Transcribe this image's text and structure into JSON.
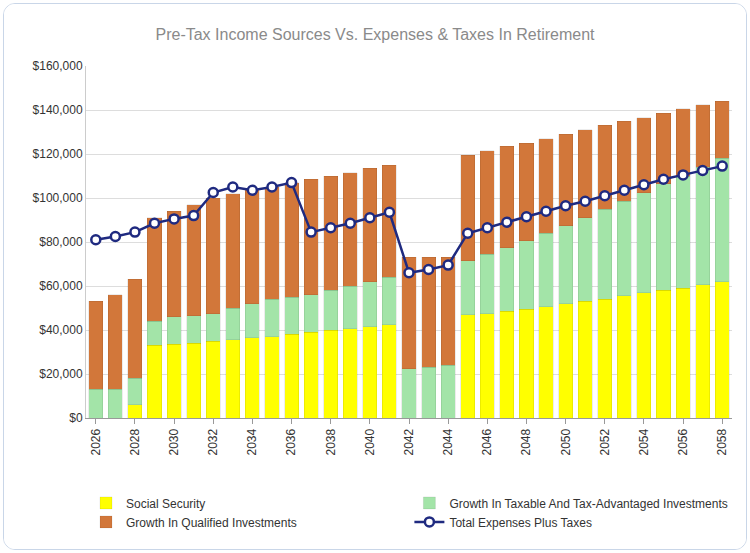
{
  "chart_data": {
    "type": "bar",
    "title": "Pre-Tax Income Sources Vs. Expenses & Taxes In Retirement",
    "stacked": true,
    "grid": true,
    "legend": "bottom",
    "x": [
      2026,
      2027,
      2028,
      2029,
      2030,
      2031,
      2032,
      2033,
      2034,
      2035,
      2036,
      2037,
      2038,
      2039,
      2040,
      2041,
      2042,
      2043,
      2044,
      2045,
      2046,
      2047,
      2048,
      2049,
      2050,
      2051,
      2052,
      2053,
      2054,
      2055,
      2056,
      2057,
      2058
    ],
    "xlim": [
      2025.5,
      2058.5
    ],
    "xticks": [
      2026,
      2028,
      2030,
      2032,
      2034,
      2036,
      2038,
      2040,
      2042,
      2044,
      2046,
      2048,
      2050,
      2052,
      2054,
      2056,
      2058
    ],
    "ylim": [
      0,
      160000
    ],
    "yticks": [
      {
        "value": 0,
        "label": "$0"
      },
      {
        "value": 20000,
        "label": "$20,000"
      },
      {
        "value": 40000,
        "label": "$40,000"
      },
      {
        "value": 60000,
        "label": "$60,000"
      },
      {
        "value": 80000,
        "label": "$80,000"
      },
      {
        "value": 100000,
        "label": "$100,000"
      },
      {
        "value": 120000,
        "label": "$120,000"
      },
      {
        "value": 140000,
        "label": "$140,000"
      },
      {
        "value": 160000,
        "label": "$160,000"
      }
    ],
    "series": [
      {
        "name": "Social Security",
        "type": "bar",
        "color": "#ffff00",
        "values": [
          0,
          0,
          6000,
          33000,
          33500,
          34000,
          35000,
          35500,
          36500,
          37000,
          38000,
          39000,
          40000,
          40500,
          41500,
          42500,
          0,
          0,
          0,
          47000,
          47500,
          48500,
          49500,
          50500,
          52000,
          53000,
          54000,
          55500,
          57000,
          58000,
          59000,
          60500,
          62000
        ]
      },
      {
        "name": "Growth In Taxable And Tax-Advantaged Investments",
        "type": "bar",
        "color": "#a3e4a8",
        "values": [
          13000,
          13000,
          12000,
          11000,
          12500,
          12500,
          12500,
          14500,
          15500,
          17000,
          17000,
          17000,
          18000,
          19500,
          20500,
          21500,
          22500,
          23000,
          24000,
          24500,
          27000,
          29000,
          31000,
          33500,
          35500,
          38000,
          41000,
          43000,
          45500,
          48500,
          51000,
          53500,
          56000
        ]
      },
      {
        "name": "Growth In Qualified Investments",
        "type": "bar",
        "color": "#d2773a",
        "values": [
          40000,
          43000,
          45000,
          47000,
          48000,
          50500,
          52500,
          52000,
          52000,
          51000,
          52000,
          52500,
          52000,
          51500,
          51500,
          51000,
          50500,
          50000,
          49000,
          48000,
          47000,
          46000,
          44500,
          43000,
          41500,
          40000,
          38000,
          36500,
          34000,
          32000,
          30500,
          28500,
          26000
        ]
      },
      {
        "name": "Total Expenses Plus Taxes",
        "type": "line",
        "color": "#1f2a80",
        "marker": "circle",
        "values": [
          81000,
          82500,
          84500,
          88500,
          90500,
          92000,
          102500,
          105000,
          103500,
          105000,
          107000,
          84500,
          86500,
          88500,
          91000,
          93500,
          66000,
          67500,
          69500,
          84000,
          86500,
          89000,
          91500,
          94000,
          96500,
          98500,
          101000,
          103500,
          106000,
          108500,
          110500,
          112500,
          114500
        ]
      }
    ]
  }
}
